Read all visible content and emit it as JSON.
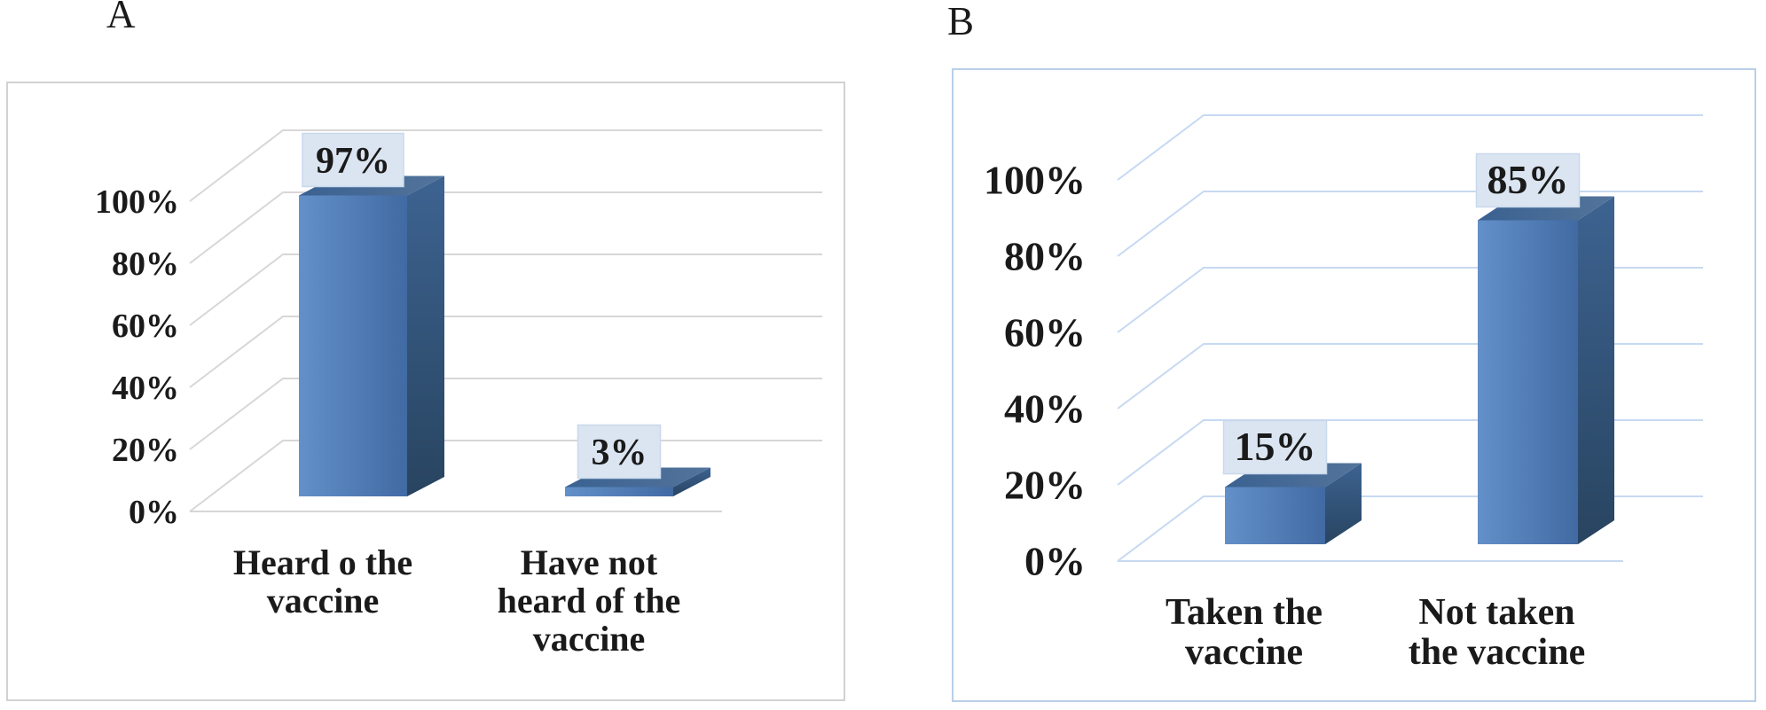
{
  "figure": {
    "background": "#ffffff",
    "description": "Two 3D column charts about vaccine awareness and uptake"
  },
  "panels": [
    {
      "label": "A"
    },
    {
      "label": "B"
    }
  ],
  "chart_data": [
    {
      "type": "bar",
      "effect": "3d",
      "panel": "A",
      "title": "A",
      "categories": [
        "Heard o the vaccine",
        "Have not heard of the vaccine"
      ],
      "category_lines": [
        [
          "Heard o the",
          "vaccine"
        ],
        [
          "Have not",
          "heard of the",
          "vaccine"
        ]
      ],
      "values": [
        97,
        3
      ],
      "data_labels": [
        "97%",
        "3%"
      ],
      "ytick_labels": [
        "100%",
        "80%",
        "60%",
        "40%",
        "20%",
        "0%"
      ],
      "ytick_values": [
        100,
        80,
        60,
        40,
        20,
        0
      ],
      "ylim": [
        0,
        100
      ],
      "grid": true,
      "legend": false,
      "colors": {
        "grid": "#d9d6d6",
        "panel_border": "#d4d1d1",
        "text": "#1a1a1a",
        "bar_front_light": "#6390c9",
        "bar_front_dark": "#416aa3",
        "bar_top_light": "#53749b",
        "bar_top_dark": "#3a6191",
        "bar_side_light": "#3d6391",
        "bar_side_dark": "#284460",
        "label_box_fill": "#dbe5f1",
        "label_box_border": "#c9d8ec"
      }
    },
    {
      "type": "bar",
      "effect": "3d",
      "panel": "B",
      "title": "B",
      "categories": [
        "Taken the vaccine",
        "Not taken the vaccine"
      ],
      "category_lines": [
        [
          "Taken the",
          "vaccine"
        ],
        [
          "Not taken",
          "the vaccine"
        ]
      ],
      "values": [
        15,
        85
      ],
      "data_labels": [
        "15%",
        "85%"
      ],
      "ytick_labels": [
        "100%",
        "80%",
        "60%",
        "40%",
        "20%",
        "0%"
      ],
      "ytick_values": [
        100,
        80,
        60,
        40,
        20,
        0
      ],
      "ylim": [
        0,
        100
      ],
      "grid": true,
      "legend": false,
      "colors": {
        "grid": "#c7d9f2",
        "panel_border": "#b9cfe9",
        "text": "#1a1a1a",
        "bar_front_light": "#6390c9",
        "bar_front_dark": "#416aa3",
        "bar_top_light": "#53749b",
        "bar_top_dark": "#3a6191",
        "bar_side_light": "#3d6391",
        "bar_side_dark": "#284460",
        "label_box_fill": "#dbe5f1",
        "label_box_border": "#c9d8ec"
      }
    }
  ]
}
